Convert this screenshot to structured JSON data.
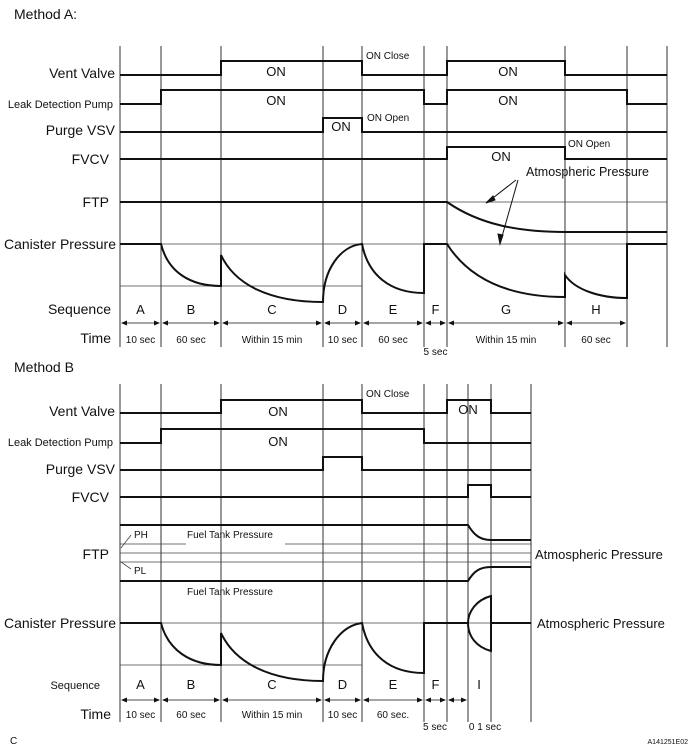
{
  "method_a": {
    "title": "Method A:",
    "rows": {
      "vent_valve": "Vent Valve",
      "leak_pump": "Leak Detection Pump",
      "purge_vsv": "Purge VSV",
      "fvcv": "FVCV",
      "ftp": "FTP",
      "canister": "Canister Pressure",
      "sequence": "Sequence",
      "time": "Time"
    },
    "annotations": {
      "vent_on_1": "ON",
      "vent_on_close": "ON Close",
      "vent_on_2": "ON",
      "pump_on_1": "ON",
      "pump_on_2": "ON",
      "purge_on": "ON",
      "purge_on_open": "ON Open",
      "fvcv_on": "ON",
      "fvcv_on_open": "ON Open",
      "atmospheric": "Atmospheric Pressure"
    },
    "sequence": [
      "A",
      "B",
      "C",
      "D",
      "E",
      "F",
      "G",
      "H"
    ],
    "times": [
      "10 sec",
      "60 sec",
      "Within 15 min",
      "10 sec",
      "60 sec",
      "5 sec",
      "Within 15 min",
      "60 sec"
    ]
  },
  "method_b": {
    "title": "Method B",
    "rows": {
      "vent_valve": "Vent Valve",
      "leak_pump": "Leak Detection Pump",
      "purge_vsv": "Purge VSV",
      "fvcv": "FVCV",
      "ftp": "FTP",
      "canister": "Canister Pressure",
      "sequence": "Sequence",
      "time": "Time"
    },
    "annotations": {
      "vent_on_1": "ON",
      "vent_on_close": "ON Close",
      "vent_on_2": "ON",
      "pump_on": "ON",
      "ph": "PH",
      "pl": "PL",
      "fuel_tank_upper": "Fuel Tank Pressure",
      "fuel_tank_lower": "Fuel Tank Pressure",
      "atmospheric_ftp": "Atmospheric Pressure",
      "atmospheric_canister": "Atmospheric Pressure"
    },
    "sequence": [
      "A",
      "B",
      "C",
      "D",
      "E",
      "F",
      "I"
    ],
    "times": [
      "10 sec",
      "60 sec",
      "Within 15 min",
      "10 sec",
      "60 sec.",
      "5 sec",
      "0 1 sec"
    ]
  },
  "footer": {
    "left": "C",
    "code": "A141251E02"
  }
}
